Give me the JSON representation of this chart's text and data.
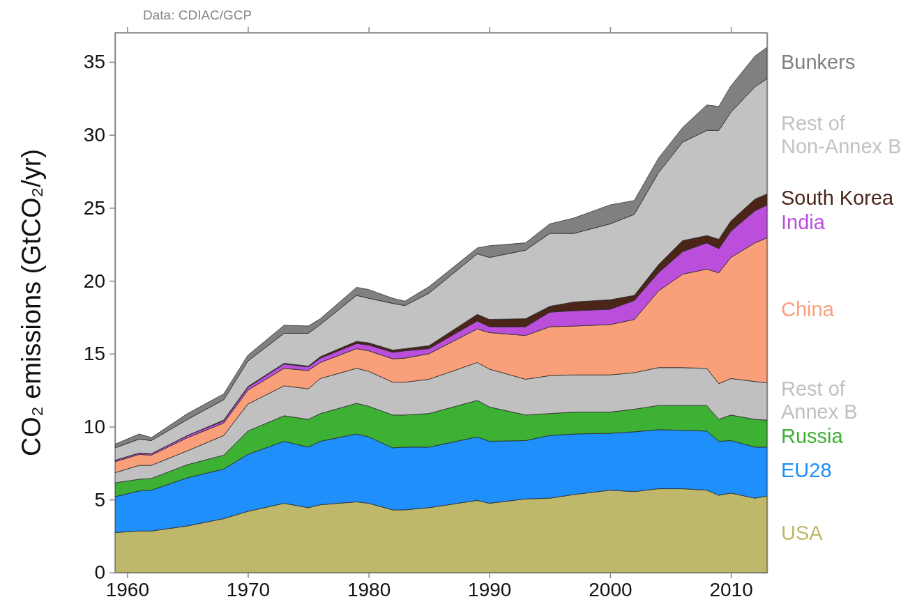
{
  "chart_data": {
    "type": "area",
    "stacked": true,
    "ylabel": "CO₂ emissions (GtCO₂/yr)",
    "annotations": [
      "Data: CDIAC/GCP"
    ],
    "legend": "right",
    "x": [
      1959,
      1961,
      1962,
      1965,
      1968,
      1970,
      1973,
      1975,
      1976,
      1979,
      1980,
      1982,
      1983,
      1985,
      1989,
      1990,
      1993,
      1995,
      1997,
      2000,
      2002,
      2004,
      2006,
      2008,
      2009,
      2010,
      2012,
      2013
    ],
    "xlim": [
      1959,
      2013
    ],
    "xticks": [
      1960,
      1970,
      1980,
      1990,
      2000,
      2010
    ],
    "ylim": [
      0,
      37
    ],
    "yticks": [
      0,
      5,
      10,
      15,
      20,
      25,
      30,
      35
    ],
    "series": [
      {
        "name": "USA",
        "color": "#bfb86a",
        "values": [
          2.75,
          2.85,
          2.85,
          3.2,
          3.7,
          4.2,
          4.75,
          4.45,
          4.65,
          4.85,
          4.75,
          4.3,
          4.3,
          4.45,
          4.95,
          4.75,
          5.05,
          5.1,
          5.35,
          5.65,
          5.55,
          5.75,
          5.75,
          5.65,
          5.3,
          5.45,
          5.1,
          5.25
        ]
      },
      {
        "name": "EU28",
        "color": "#1e8ffb",
        "values": [
          2.45,
          2.75,
          2.8,
          3.3,
          3.4,
          3.9,
          4.25,
          4.15,
          4.35,
          4.65,
          4.55,
          4.25,
          4.3,
          4.15,
          4.35,
          4.25,
          4.0,
          4.3,
          4.15,
          3.9,
          4.1,
          4.05,
          4.0,
          4.05,
          3.7,
          3.6,
          3.5,
          3.35
        ]
      },
      {
        "name": "Russia",
        "color": "#3db134",
        "values": [
          0.95,
          0.8,
          0.8,
          0.9,
          0.95,
          1.6,
          1.75,
          1.9,
          1.9,
          2.1,
          2.1,
          2.25,
          2.2,
          2.3,
          2.5,
          2.35,
          1.75,
          1.5,
          1.5,
          1.45,
          1.55,
          1.65,
          1.7,
          1.75,
          1.5,
          1.75,
          1.9,
          1.85
        ]
      },
      {
        "name": "Rest of Annex B",
        "color": "#c0c0c0",
        "values": [
          0.7,
          0.95,
          0.9,
          0.95,
          1.35,
          1.85,
          2.05,
          2.1,
          2.4,
          2.4,
          2.4,
          2.25,
          2.25,
          2.35,
          2.6,
          2.6,
          2.45,
          2.6,
          2.55,
          2.55,
          2.5,
          2.6,
          2.6,
          2.55,
          2.45,
          2.5,
          2.6,
          2.55
        ]
      },
      {
        "name": "China",
        "color": "#f9a07a",
        "values": [
          0.75,
          0.75,
          0.7,
          0.9,
          0.85,
          0.95,
          1.2,
          1.25,
          1.1,
          1.35,
          1.4,
          1.6,
          1.65,
          1.75,
          2.3,
          2.5,
          3.0,
          3.35,
          3.35,
          3.45,
          3.65,
          5.25,
          6.4,
          6.8,
          7.6,
          8.3,
          9.5,
          9.95
        ]
      },
      {
        "name": "India",
        "color": "#bb4fdb",
        "values": [
          0.1,
          0.1,
          0.1,
          0.15,
          0.15,
          0.2,
          0.3,
          0.25,
          0.3,
          0.35,
          0.4,
          0.45,
          0.5,
          0.35,
          0.55,
          0.4,
          0.6,
          1.0,
          1.05,
          1.05,
          1.3,
          1.25,
          1.55,
          1.8,
          1.65,
          1.8,
          2.2,
          2.25
        ]
      },
      {
        "name": "South Korea",
        "color": "#4a2518",
        "values": [
          0,
          0,
          0,
          0,
          0.05,
          0.05,
          0.05,
          0.05,
          0.1,
          0.15,
          0.15,
          0.15,
          0.15,
          0.2,
          0.45,
          0.5,
          0.55,
          0.4,
          0.6,
          0.65,
          0.35,
          0.55,
          0.75,
          0.5,
          0.65,
          0.7,
          0.8,
          0.75
        ]
      },
      {
        "name": "Rest of Non-Annex B",
        "color": "#c2c2c2",
        "values": [
          0.85,
          0.95,
          0.9,
          1.1,
          1.4,
          1.75,
          2.05,
          2.25,
          2.2,
          3.15,
          3.05,
          3.2,
          2.95,
          3.6,
          4.15,
          4.25,
          4.7,
          5.0,
          4.7,
          5.2,
          5.55,
          6.3,
          6.75,
          7.2,
          7.45,
          7.45,
          7.7,
          7.9
        ]
      },
      {
        "name": "Bunkers",
        "color": "#808080",
        "values": [
          0.25,
          0.35,
          0.2,
          0.4,
          0.4,
          0.4,
          0.55,
          0.5,
          0.4,
          0.55,
          0.6,
          0.35,
          0.3,
          0.45,
          0.4,
          0.8,
          0.5,
          0.65,
          1.05,
          1.3,
          0.95,
          1.0,
          1.0,
          1.75,
          1.65,
          1.8,
          2.1,
          2.15
        ]
      }
    ]
  }
}
